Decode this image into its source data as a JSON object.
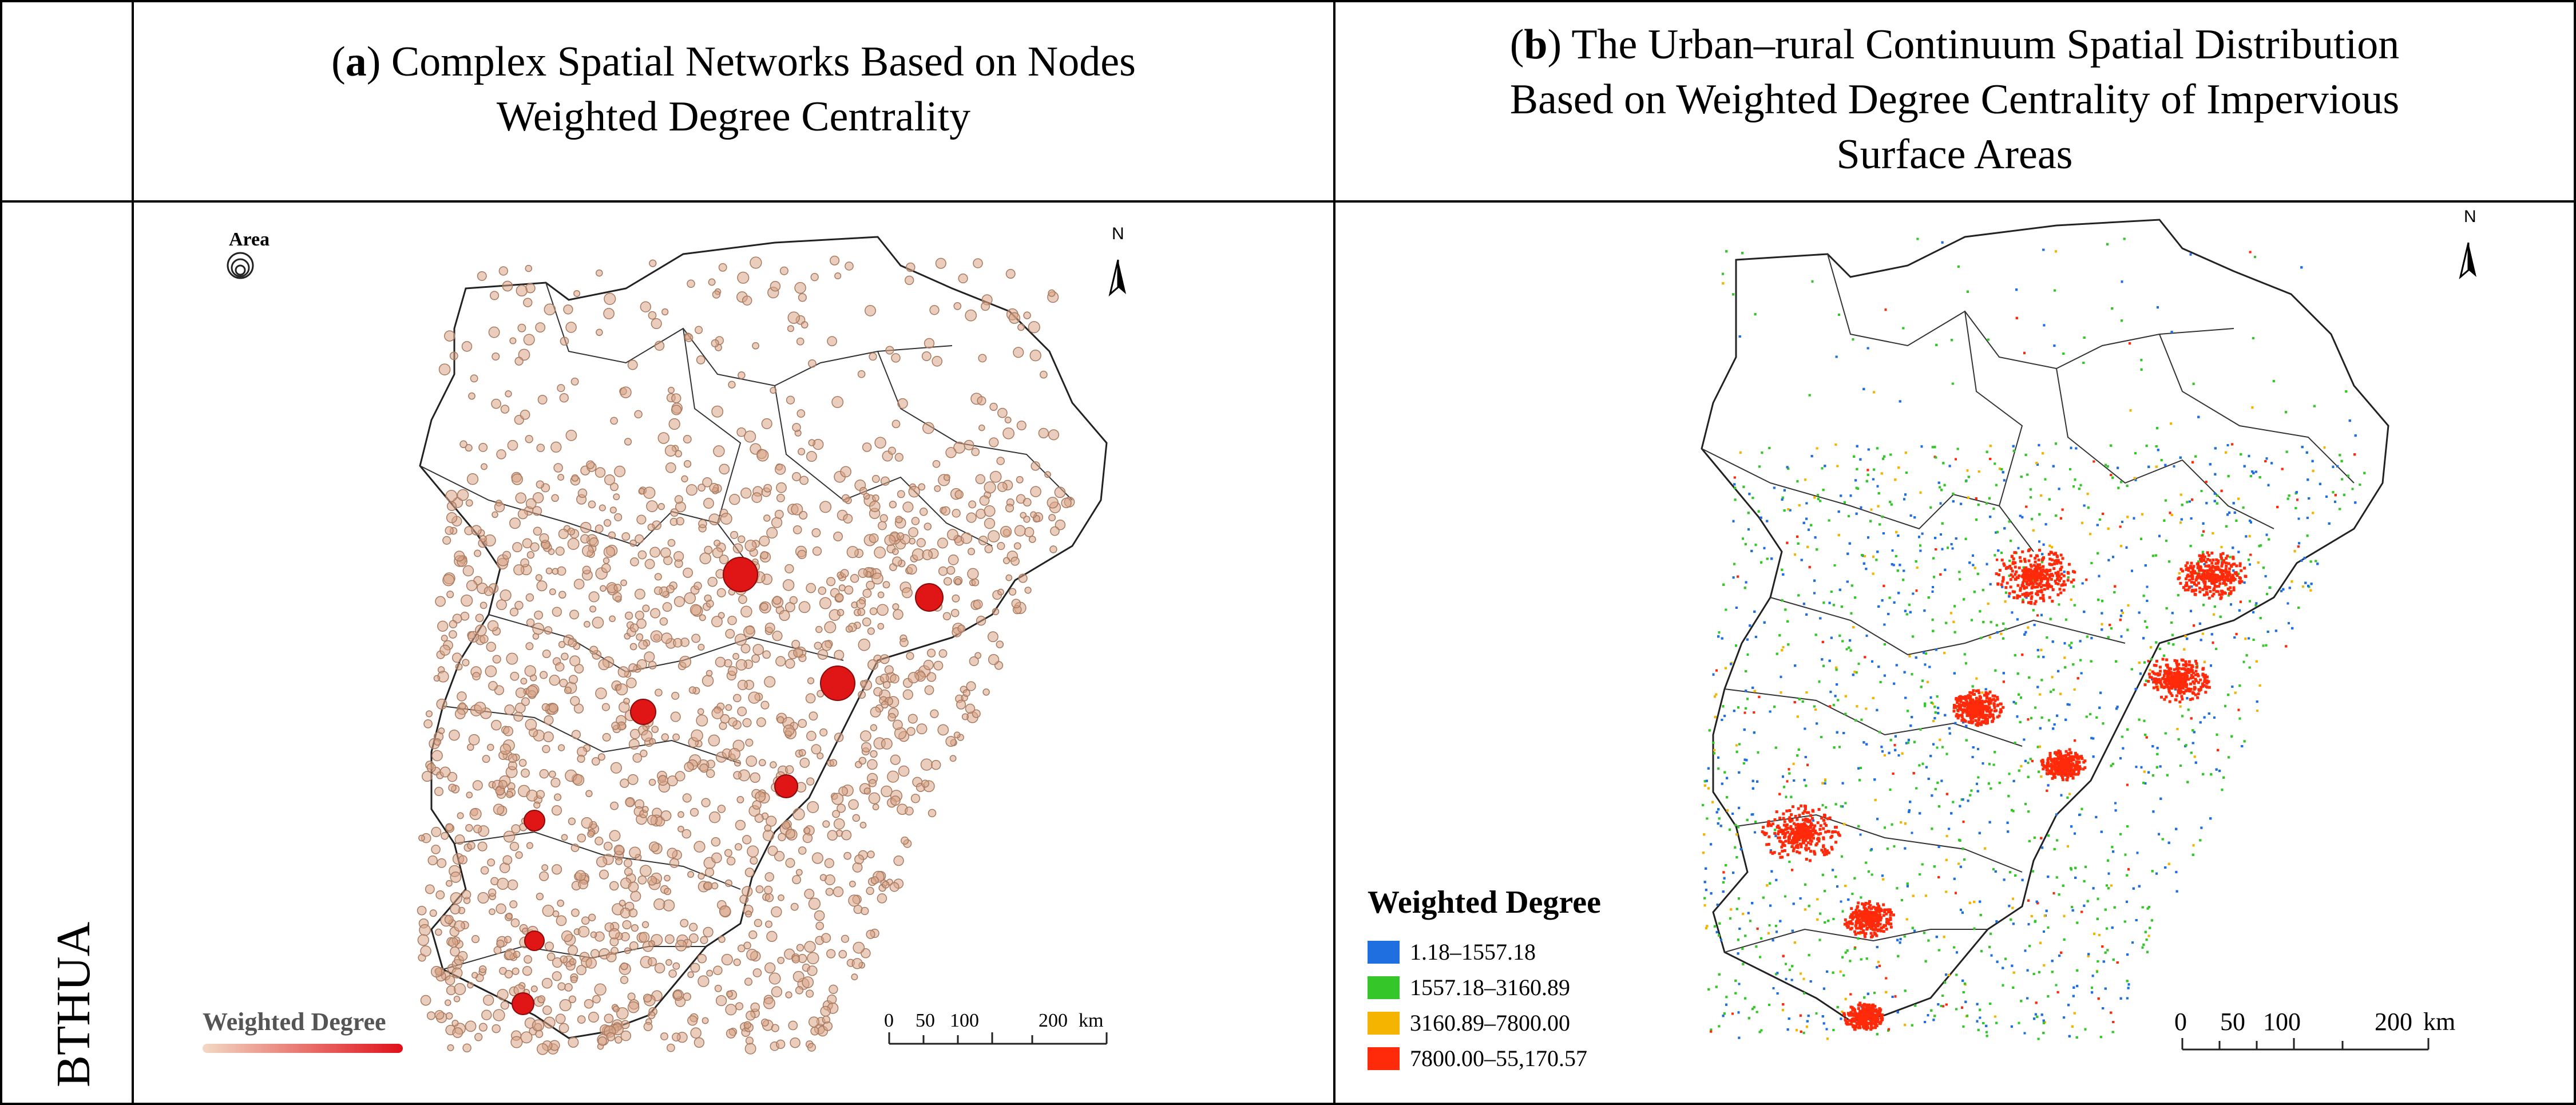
{
  "headers": {
    "a_prefix": "(",
    "a_letter": "a",
    "a_line1": ") Complex Spatial Networks Based on Nodes",
    "a_line2": "Weighted Degree Centrality",
    "b_prefix": "(",
    "b_letter": "b",
    "b_line1": ") The Urban–rural Continuum Spatial Distribution",
    "b_line2": "Based on Weighted Degree Centrality of Impervious",
    "b_line3": "Surface Areas"
  },
  "row_label": "BTHUA",
  "panel_a": {
    "area_label": "Area",
    "north_label": "N",
    "legend_title": "Weighted Degree",
    "scale": [
      "0",
      "50",
      "100",
      "200",
      "km"
    ]
  },
  "panel_b": {
    "north_label": "N",
    "legend_title": "Weighted Degree",
    "legend": [
      {
        "label": "1.18–1557.18",
        "color": "#1f6fe0"
      },
      {
        "label": "1557.18–3160.89",
        "color": "#35c72a"
      },
      {
        "label": "3160.89–7800.00",
        "color": "#f5b400"
      },
      {
        "label": "7800.00–55,170.57",
        "color": "#ff2a0a"
      }
    ],
    "scale": [
      "0",
      "50",
      "100",
      "200",
      "km"
    ]
  },
  "colors": {
    "node_fill": "#d8a486",
    "node_stroke": "#a87a60",
    "hub_fill": "#e01515",
    "ramp_start": "#f2d9c4",
    "ramp_end": "#e0101a"
  }
}
